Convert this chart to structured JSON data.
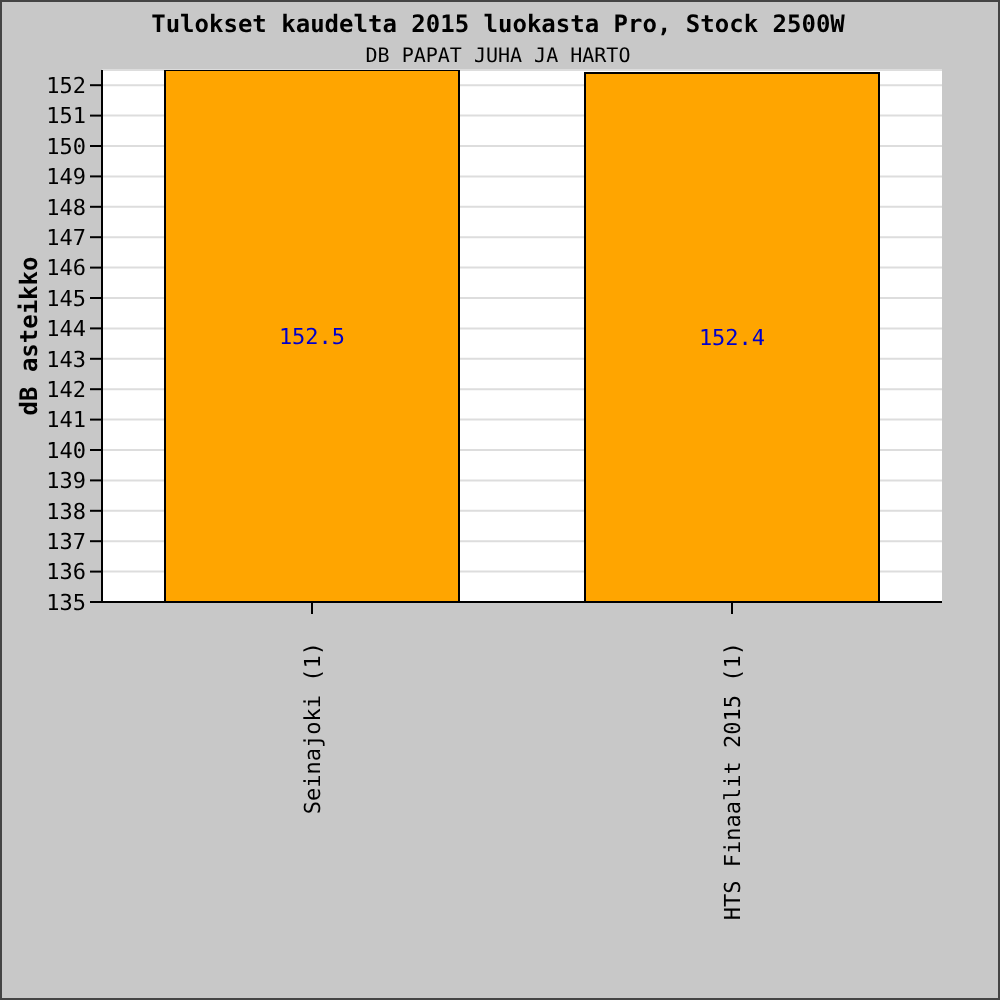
{
  "chart_data": {
    "type": "bar",
    "title": "Tulokset kaudelta 2015 luokasta Pro, Stock 2500W",
    "subtitle": "DB PAPAT JUHA JA HARTO",
    "ylabel": "dB asteikko",
    "categories": [
      "Seinajoki (1)",
      "HTS Finaalit 2015 (1)"
    ],
    "values": [
      152.5,
      152.4
    ],
    "color": "#ffa500",
    "ylim": [
      135,
      152.5
    ],
    "yticks": [
      135,
      136,
      137,
      138,
      139,
      140,
      141,
      142,
      143,
      144,
      145,
      146,
      147,
      148,
      149,
      150,
      151,
      152
    ],
    "grid": "y",
    "data_labels": true
  }
}
